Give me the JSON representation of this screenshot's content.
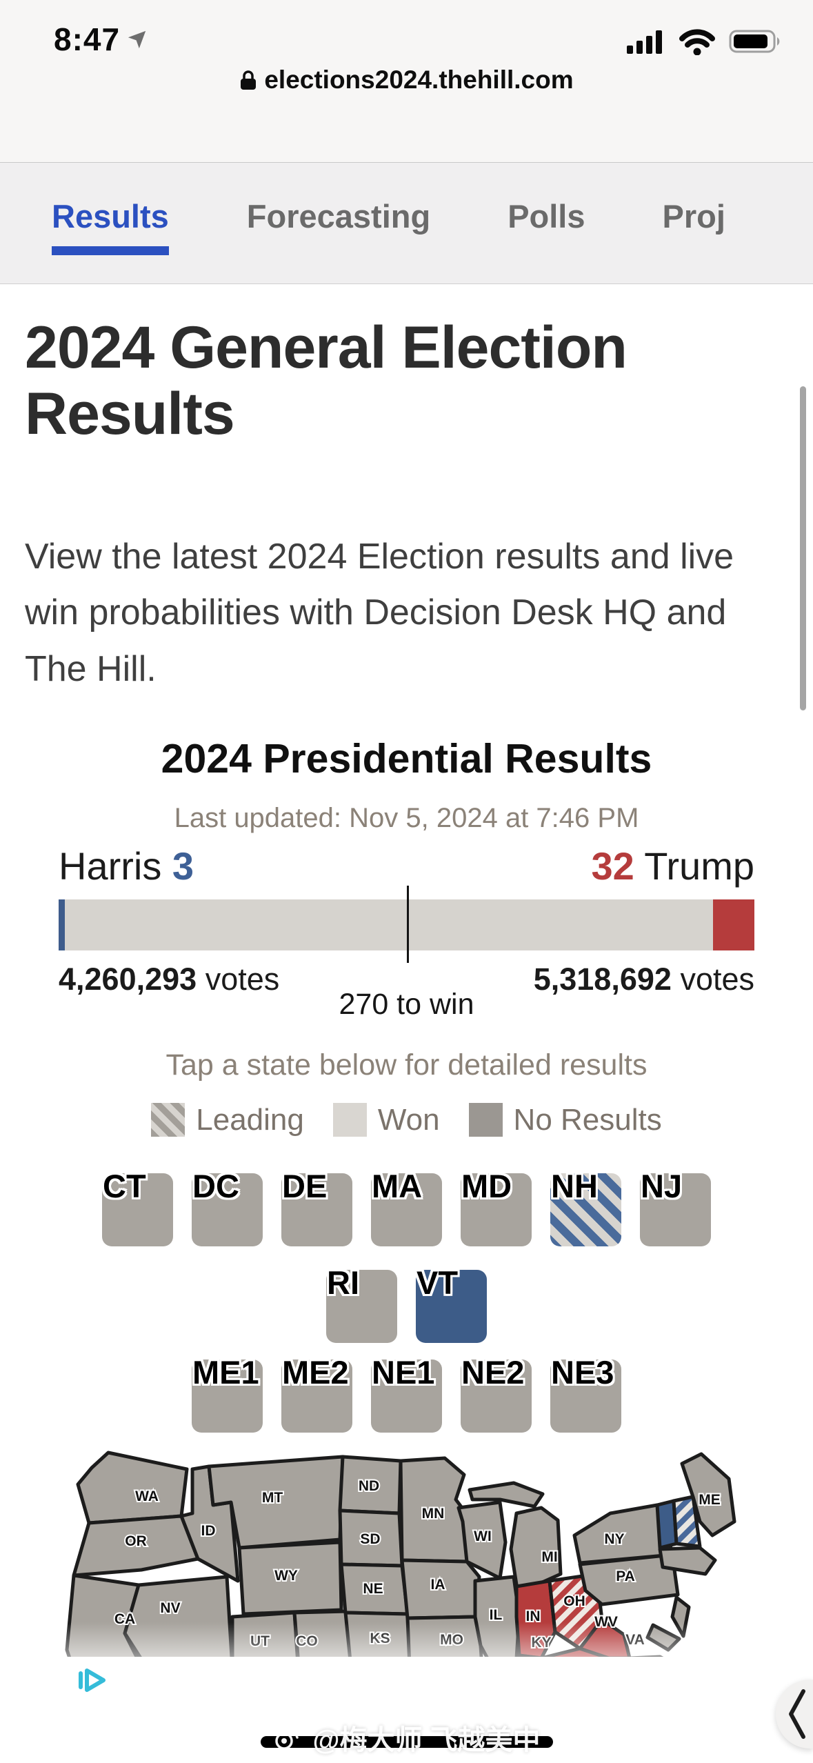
{
  "status_bar": {
    "time": "8:47"
  },
  "url_bar": {
    "domain": "elections2024.thehill.com"
  },
  "nav": {
    "active_color": "#2b50c0",
    "tabs": [
      {
        "label": "Results",
        "active": true
      },
      {
        "label": "Forecasting",
        "active": false
      },
      {
        "label": "Polls",
        "active": false
      },
      {
        "label": "Proj",
        "active": false
      }
    ]
  },
  "page": {
    "title": "2024 General Election Results",
    "intro": "View the latest 2024 Election results and live win probabilities with Decision Desk HQ and The Hill."
  },
  "presidential": {
    "heading": "2024 Presidential Results",
    "last_updated": "Last updated: Nov 5, 2024 at 7:46 PM",
    "harris": {
      "name": "Harris",
      "electoral_votes": "3",
      "votes": "4,260,293",
      "votes_label": "votes",
      "color": "#3e6096"
    },
    "trump": {
      "name": "Trump",
      "electoral_votes": "32",
      "votes": "5,318,692",
      "votes_label": "votes",
      "color": "#b53c3c"
    },
    "threshold_label": "270 to win"
  },
  "map_section": {
    "tap_hint": "Tap a state below for detailed results",
    "legend": [
      {
        "label": "Leading"
      },
      {
        "label": "Won"
      },
      {
        "label": "No Results"
      }
    ],
    "tile_rows": [
      [
        {
          "label": "CT",
          "status": "none"
        },
        {
          "label": "DC",
          "status": "none"
        },
        {
          "label": "DE",
          "status": "none"
        },
        {
          "label": "MA",
          "status": "none"
        },
        {
          "label": "MD",
          "status": "none"
        },
        {
          "label": "NH",
          "status": "dem-lead"
        },
        {
          "label": "NJ",
          "status": "none"
        }
      ],
      [
        {
          "label": "RI",
          "status": "none"
        },
        {
          "label": "VT",
          "status": "dem"
        }
      ],
      [
        {
          "label": "ME1",
          "status": "none"
        },
        {
          "label": "ME2",
          "status": "none"
        },
        {
          "label": "NE1",
          "status": "none"
        },
        {
          "label": "NE2",
          "status": "none"
        },
        {
          "label": "NE3",
          "status": "none"
        }
      ]
    ],
    "states": [
      {
        "code": "WA",
        "status": "none"
      },
      {
        "code": "OR",
        "status": "none"
      },
      {
        "code": "CA",
        "status": "none"
      },
      {
        "code": "ID",
        "status": "none"
      },
      {
        "code": "NV",
        "status": "none"
      },
      {
        "code": "MT",
        "status": "none"
      },
      {
        "code": "WY",
        "status": "none"
      },
      {
        "code": "UT",
        "status": "none"
      },
      {
        "code": "CO",
        "status": "none"
      },
      {
        "code": "ND",
        "status": "none"
      },
      {
        "code": "SD",
        "status": "none"
      },
      {
        "code": "NE",
        "status": "none"
      },
      {
        "code": "KS",
        "status": "none"
      },
      {
        "code": "MN",
        "status": "none"
      },
      {
        "code": "IA",
        "status": "none"
      },
      {
        "code": "MO",
        "status": "none"
      },
      {
        "code": "WI",
        "status": "none"
      },
      {
        "code": "MI",
        "status": "none"
      },
      {
        "code": "IL",
        "status": "none"
      },
      {
        "code": "IN",
        "status": "rep"
      },
      {
        "code": "OH",
        "status": "rep-lead"
      },
      {
        "code": "KY",
        "status": "rep"
      },
      {
        "code": "WV",
        "status": "rep"
      },
      {
        "code": "VA",
        "status": "dem-lead"
      },
      {
        "code": "PA",
        "status": "none"
      },
      {
        "code": "NY",
        "status": "none"
      },
      {
        "code": "VT",
        "status": "dem",
        "no_label": true
      },
      {
        "code": "NH",
        "status": "dem-lead",
        "no_label": true
      },
      {
        "code": "ME",
        "status": "none"
      }
    ]
  },
  "watermark": {
    "text": "@梅大师 飞越美中"
  }
}
